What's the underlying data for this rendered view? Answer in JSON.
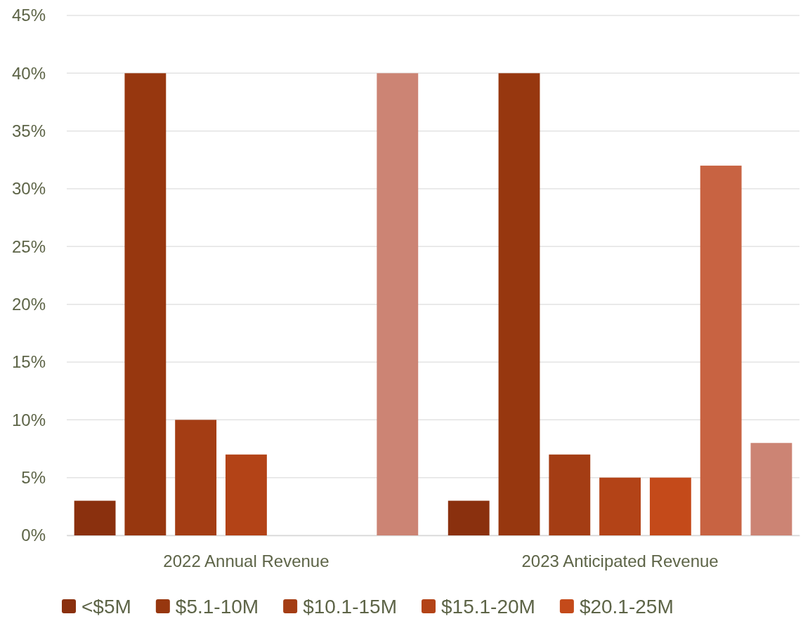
{
  "chart_data": {
    "type": "bar",
    "categories": [
      "2022 Annual Revenue",
      "2023 Anticipated Revenue"
    ],
    "series": [
      {
        "name": "<$5M",
        "color": "#8a300e",
        "values": [
          3,
          3
        ]
      },
      {
        "name": "$5.1-10M",
        "color": "#97370f",
        "values": [
          40,
          40
        ]
      },
      {
        "name": "$10.1-15M",
        "color": "#a43d14",
        "values": [
          10,
          7
        ]
      },
      {
        "name": "$15.1-20M",
        "color": "#b34317",
        "values": [
          7,
          5
        ]
      },
      {
        "name": "$20.1-25M",
        "color": "#c44a1a",
        "values": [
          null,
          5
        ]
      },
      {
        "color": "#c86342",
        "values": [
          null,
          32
        ]
      },
      {
        "color": "#cc8474",
        "values": [
          40,
          8
        ]
      }
    ],
    "ylim": [
      0,
      45
    ],
    "yticks": [
      {
        "value": 0,
        "label": "0%"
      },
      {
        "value": 5,
        "label": "5%"
      },
      {
        "value": 10,
        "label": "10%"
      },
      {
        "value": 15,
        "label": "15%"
      },
      {
        "value": 20,
        "label": "20%"
      },
      {
        "value": 25,
        "label": "25%"
      },
      {
        "value": 30,
        "label": "30%"
      },
      {
        "value": 35,
        "label": "35%"
      },
      {
        "value": 40,
        "label": "40%"
      },
      {
        "value": 45,
        "label": "45%"
      }
    ],
    "grid": "y",
    "legend": "bottom"
  }
}
